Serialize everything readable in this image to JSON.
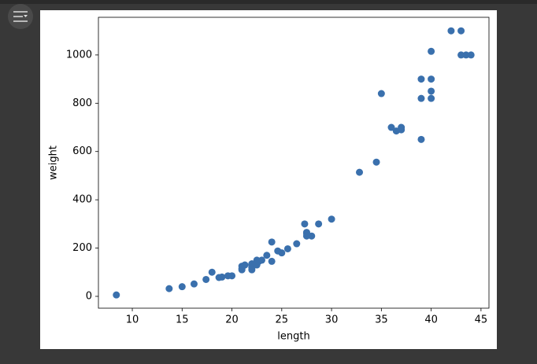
{
  "chart_data": {
    "type": "scatter",
    "x_label": "length",
    "y_label": "weight",
    "color": "#3a70ad",
    "x": [
      8.4,
      13.7,
      15,
      16.2,
      17.4,
      18,
      18.7,
      19,
      19.6,
      20,
      21,
      21,
      21,
      21.3,
      22,
      22,
      22,
      22,
      22,
      22.5,
      22.5,
      22.7,
      23,
      23.5,
      24,
      24,
      24.6,
      25,
      25.6,
      26.5,
      27.3,
      27.5,
      27.5,
      27.5,
      28,
      28.7,
      30,
      32.8,
      34.5,
      35,
      36.5,
      36,
      37,
      37,
      39,
      39,
      39,
      40,
      40,
      40,
      40,
      42,
      43,
      43,
      43.5,
      44
    ],
    "y": [
      5.9,
      32,
      40,
      51.5,
      70,
      100,
      78,
      80,
      85,
      85,
      110,
      115,
      125,
      130,
      120,
      120,
      130,
      135,
      110,
      130,
      150,
      145,
      150,
      170,
      225,
      145,
      188,
      180,
      197,
      218,
      300,
      260,
      265,
      250,
      250,
      300,
      320,
      514,
      556,
      840,
      685,
      700,
      700,
      690,
      900,
      650,
      820,
      850,
      900,
      1015,
      820,
      1100,
      1000,
      1100,
      1000,
      1000
    ],
    "xlim": [
      6.6,
      45.8
    ],
    "ylim": [
      -49,
      1156
    ],
    "xticks": [
      10,
      15,
      20,
      25,
      30,
      35,
      40,
      45
    ],
    "yticks": [
      0,
      200,
      400,
      600,
      800,
      1000
    ]
  }
}
